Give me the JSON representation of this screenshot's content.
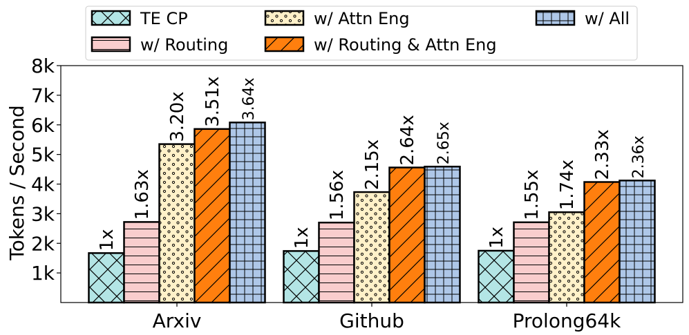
{
  "chart_data": {
    "type": "bar",
    "title": "",
    "xlabel": "",
    "ylabel": "Tokens / Second",
    "ylim": [
      0,
      8000
    ],
    "yticks": [
      1000,
      2000,
      3000,
      4000,
      5000,
      6000,
      7000,
      8000
    ],
    "ytick_labels": [
      "1k",
      "2k",
      "3k",
      "4k",
      "5k",
      "6k",
      "7k",
      "8k"
    ],
    "categories": [
      "Arxiv",
      "Github",
      "Prolong64k"
    ],
    "legend_position": "top-center",
    "series": [
      {
        "name": "TE CP",
        "color": "#b3e5e5",
        "pattern": "crosshatch-diagonal",
        "values": [
          1670,
          1740,
          1750
        ],
        "labels": [
          "1x",
          "1x",
          "1x"
        ]
      },
      {
        "name": "w/ Routing",
        "color": "#f9cdcd",
        "pattern": "horizontal-lines",
        "values": [
          2720,
          2700,
          2710
        ],
        "labels": [
          "1.63x",
          "1.56x",
          "1.55x"
        ]
      },
      {
        "name": "w/ Attn Eng",
        "color": "#fff1c9",
        "pattern": "dots",
        "values": [
          5350,
          3730,
          3050
        ],
        "labels": [
          "3.20x",
          "2.15x",
          "1.74x"
        ]
      },
      {
        "name": "w/ Routing & Attn Eng",
        "color": "#ff7f0e",
        "pattern": "forward-diagonal",
        "values": [
          5860,
          4560,
          4070
        ],
        "labels": [
          "3.51x",
          "2.64x",
          "2.33x"
        ]
      },
      {
        "name": "w/ All",
        "color": "#aec7e8",
        "pattern": "grid",
        "values": [
          6080,
          4590,
          4120
        ],
        "labels": [
          "3.64x",
          "2.65x",
          "2.36x"
        ]
      }
    ]
  }
}
